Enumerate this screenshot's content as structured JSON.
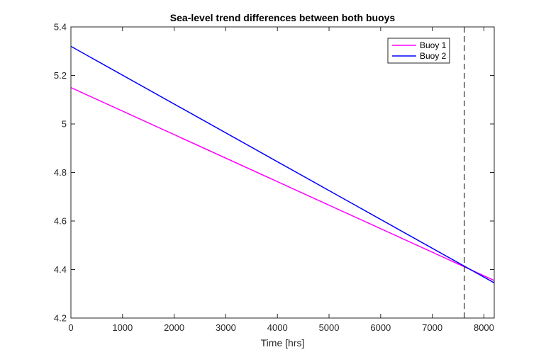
{
  "chart_data": {
    "type": "line",
    "title": "Sea-level trend differences between both buoys",
    "xlabel": "Time [hrs]",
    "ylabel": "",
    "xlim": [
      0,
      8200
    ],
    "ylim": [
      4.2,
      5.4
    ],
    "xticks": [
      0,
      1000,
      2000,
      3000,
      4000,
      5000,
      6000,
      7000,
      8000
    ],
    "xtick_labels": [
      "0",
      "1000",
      "2000",
      "3000",
      "4000",
      "5000",
      "6000",
      "7000",
      "8000"
    ],
    "yticks": [
      4.2,
      4.4,
      4.6,
      4.8,
      5.0,
      5.2,
      5.4
    ],
    "ytick_labels": [
      "4.2",
      "4.4",
      "4.6",
      "4.8",
      "5",
      "5.2",
      "5.4"
    ],
    "grid": false,
    "legend_position": "top-right",
    "series": [
      {
        "name": "Buoy 1",
        "color": "#ff00ff",
        "x": [
          0,
          8200
        ],
        "y": [
          5.15,
          4.355
        ]
      },
      {
        "name": "Buoy 2",
        "color": "#0000ff",
        "x": [
          0,
          8200
        ],
        "y": [
          5.32,
          4.345
        ]
      }
    ],
    "annotations": [
      {
        "type": "vertical-dashed-line",
        "x": 7620,
        "color": "#000000"
      }
    ]
  }
}
